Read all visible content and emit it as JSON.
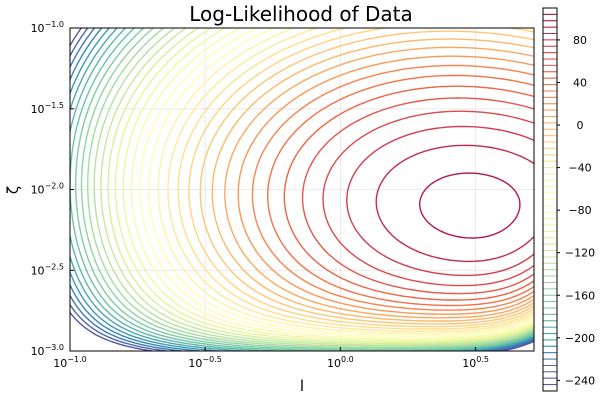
{
  "chart_data": {
    "type": "contour",
    "title": "Log-Likelihood of Data",
    "xlabel": "l",
    "ylabel": "ζ",
    "xscale": "log10",
    "yscale": "log10",
    "xlim": [
      0.1,
      5.2
    ],
    "ylim": [
      0.001,
      0.1
    ],
    "x_ticks": [
      {
        "value": 0.1,
        "label_base": "10",
        "label_exp": "−1.0"
      },
      {
        "value": 0.316,
        "label_base": "10",
        "label_exp": "−0.5"
      },
      {
        "value": 1.0,
        "label_base": "10",
        "label_exp": "0.0"
      },
      {
        "value": 3.162,
        "label_base": "10",
        "label_exp": "0.5"
      }
    ],
    "y_ticks": [
      {
        "value": 0.1,
        "label_base": "10",
        "label_exp": "−1.0"
      },
      {
        "value": 0.0316,
        "label_base": "10",
        "label_exp": "−1.5"
      },
      {
        "value": 0.01,
        "label_base": "10",
        "label_exp": "−2.0"
      },
      {
        "value": 0.00316,
        "label_base": "10",
        "label_exp": "−2.5"
      },
      {
        "value": 0.001,
        "label_base": "10",
        "label_exp": "−3.0"
      }
    ],
    "maximum": {
      "l": 3.16,
      "zeta": 0.0075,
      "value": 100
    },
    "contour_levels": [
      100,
      90,
      80,
      70,
      60,
      50,
      40,
      30,
      20,
      10,
      0,
      -10,
      -20,
      -30,
      -40,
      -60,
      -80,
      -100,
      -120,
      -140,
      -160,
      -180,
      -200,
      -220,
      -240
    ],
    "colorbar": {
      "min": -250,
      "max": 110,
      "ticks": [
        80,
        40,
        0,
        -40,
        -80,
        -120,
        -160,
        -200,
        -240
      ],
      "tick_labels": [
        "80",
        "40",
        "0",
        "−40",
        "−80",
        "−120",
        "−160",
        "−200",
        "−240"
      ],
      "colormap": [
        "#9e0142",
        "#d53e4f",
        "#f46d43",
        "#fdae61",
        "#fee08b",
        "#ffffbf",
        "#e6f598",
        "#abdda4",
        "#66c2a5",
        "#3288bd",
        "#5e4fa2"
      ]
    },
    "grid": true,
    "legend": "none"
  }
}
